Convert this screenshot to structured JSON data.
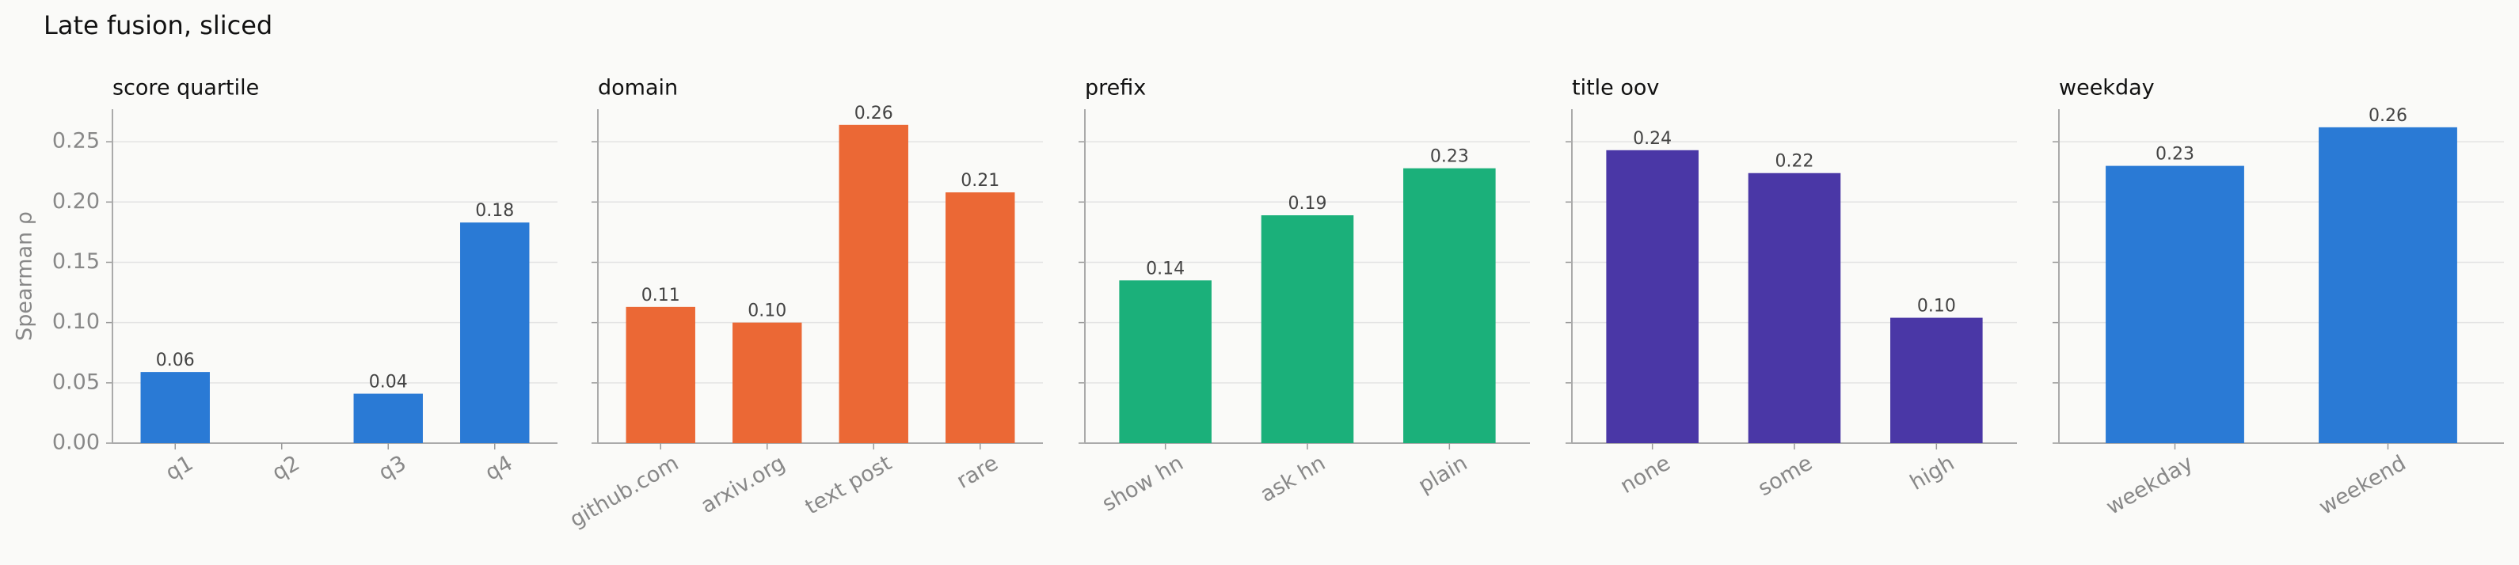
{
  "title": "Late fusion, sliced",
  "chart_data": [
    {
      "type": "bar",
      "title": "score quartile",
      "ylabel": "Spearman ρ",
      "color": "#2a7ad5",
      "categories": [
        "q1",
        "q2",
        "q3",
        "q4"
      ],
      "values": [
        0.059,
        null,
        0.041,
        0.183
      ],
      "value_labels": [
        "0.06",
        null,
        "0.04",
        "0.18"
      ],
      "ylim": [
        0,
        0.277
      ],
      "yticks": [
        {
          "value": 0,
          "label": "0.00"
        },
        {
          "value": 0.05,
          "label": "0.05"
        },
        {
          "value": 0.1,
          "label": "0.10"
        },
        {
          "value": 0.15,
          "label": "0.15"
        },
        {
          "value": 0.2,
          "label": "0.20"
        },
        {
          "value": 0.25,
          "label": "0.25"
        }
      ],
      "grid": true
    },
    {
      "type": "bar",
      "title": "domain",
      "color": "#eb6835",
      "categories": [
        "github.com",
        "arxiv.org",
        "text post",
        "rare"
      ],
      "values": [
        0.113,
        0.1,
        0.264,
        0.208
      ],
      "value_labels": [
        "0.11",
        "0.10",
        "0.26",
        "0.21"
      ],
      "ylim": [
        0,
        0.277
      ],
      "grid": true
    },
    {
      "type": "bar",
      "title": "prefix",
      "color": "#1bb07a",
      "categories": [
        "show hn",
        "ask hn",
        "plain"
      ],
      "values": [
        0.135,
        0.189,
        0.228
      ],
      "value_labels": [
        "0.14",
        "0.19",
        "0.23"
      ],
      "ylim": [
        0,
        0.277
      ],
      "grid": true
    },
    {
      "type": "bar",
      "title": "title oov",
      "color": "#4a37a6",
      "categories": [
        "none",
        "some",
        "high"
      ],
      "values": [
        0.243,
        0.224,
        0.104
      ],
      "value_labels": [
        "0.24",
        "0.22",
        "0.10"
      ],
      "ylim": [
        0,
        0.277
      ],
      "grid": true
    },
    {
      "type": "bar",
      "title": "weekday",
      "color": "#2a7ad5",
      "categories": [
        "weekday",
        "weekend"
      ],
      "values": [
        0.23,
        0.262
      ],
      "value_labels": [
        "0.23",
        "0.26"
      ],
      "ylim": [
        0,
        0.277
      ],
      "grid": true
    }
  ]
}
